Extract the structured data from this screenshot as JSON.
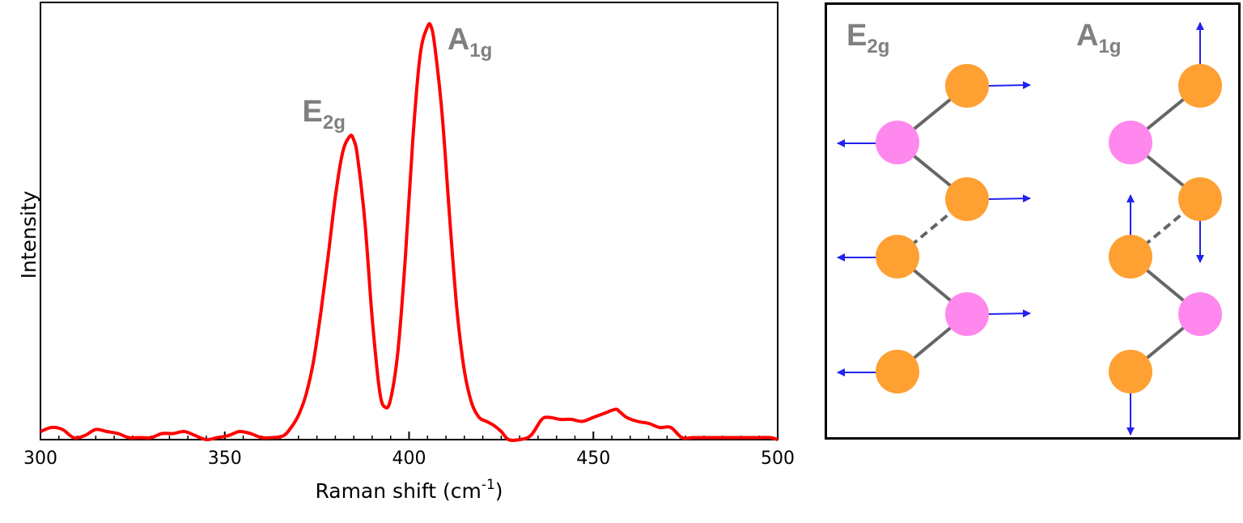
{
  "chart_data": {
    "type": "line",
    "xlabel_main": "Raman shift (cm",
    "xlabel_sup": "-1",
    "xlabel_close": ")",
    "ylabel": "Intensity",
    "xlim": [
      300,
      500
    ],
    "ylim": [
      0,
      1.08
    ],
    "xticks": [
      300,
      350,
      400,
      450,
      500
    ],
    "xtick_labels": [
      "300",
      "350",
      "400",
      "450",
      "500"
    ],
    "grid": false,
    "line_color": "#ff0000",
    "annotation_color": "#808080",
    "series": [
      {
        "x": [
          300,
          303,
          306,
          309,
          312,
          315,
          318,
          321,
          324,
          327,
          330,
          333,
          336,
          339,
          342,
          345,
          348,
          351,
          354,
          357,
          360,
          363,
          366,
          368,
          370,
          372,
          374,
          376,
          378,
          380,
          382,
          384,
          385,
          386,
          388,
          390,
          392,
          393.5,
          395,
          397,
          399,
          401,
          403,
          405,
          406,
          407,
          409,
          411,
          413,
          415,
          417,
          419,
          421,
          423,
          425,
          427,
          430,
          433,
          436,
          438,
          441,
          444,
          447,
          450,
          453,
          456,
          457,
          459,
          462,
          465,
          468,
          471,
          474,
          477,
          480,
          483,
          486,
          489,
          492,
          495,
          498,
          500
        ],
        "y": [
          0.02,
          0.03,
          0.025,
          0.005,
          0.01,
          0.025,
          0.02,
          0.015,
          0.005,
          0.005,
          0.005,
          0.015,
          0.015,
          0.02,
          0.01,
          0.0,
          0.005,
          0.01,
          0.02,
          0.015,
          0.005,
          0.005,
          0.01,
          0.03,
          0.06,
          0.11,
          0.19,
          0.31,
          0.45,
          0.6,
          0.71,
          0.75,
          0.74,
          0.7,
          0.54,
          0.3,
          0.12,
          0.08,
          0.1,
          0.22,
          0.45,
          0.74,
          0.95,
          1.02,
          1.02,
          0.97,
          0.8,
          0.55,
          0.32,
          0.17,
          0.09,
          0.055,
          0.045,
          0.035,
          0.02,
          0.0,
          0.0,
          0.01,
          0.05,
          0.055,
          0.05,
          0.05,
          0.045,
          0.055,
          0.065,
          0.075,
          0.07,
          0.055,
          0.045,
          0.04,
          0.03,
          0.03,
          0.005,
          0.005,
          0.005,
          0.005,
          0.005,
          0.005,
          0.005,
          0.005,
          0.005,
          0.0
        ]
      }
    ],
    "annotations": [
      {
        "main": "E",
        "sub": "2g",
        "x": 384.5,
        "y": 0.75
      },
      {
        "main": "A",
        "sub": "1g",
        "x": 406,
        "y": 1.02
      }
    ]
  },
  "diagram": {
    "bond_color": "#666666",
    "arrow_color": "#2222ee",
    "atom_colors": {
      "metal": "#ffa033",
      "chalcogen": "#ff88ee"
    },
    "modes": [
      {
        "main": "E",
        "sub": "2g",
        "direction": "horizontal"
      },
      {
        "main": "A",
        "sub": "1g",
        "direction": "vertical"
      }
    ]
  }
}
